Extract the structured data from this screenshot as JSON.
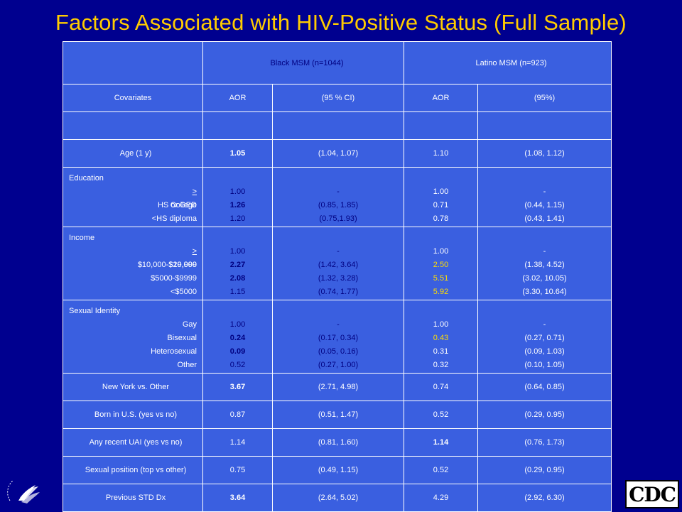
{
  "title": "Factors Associated with HIV-Positive Status (Full Sample)",
  "header": {
    "black_group": "Black MSM (n=1044)",
    "latino_group": "Latino MSM (n=923)",
    "col_covariates": "Covariates",
    "col_aor_black": "AOR",
    "col_ci_black": "(95 % CI)",
    "col_aor_latino": "AOR",
    "col_ci_latino": "(95%)"
  },
  "rows": {
    "age": {
      "label": "Age (1 y)",
      "aor_b": "1.05",
      "ci_b": "(1.04, 1.07)",
      "aor_l": "1.10",
      "ci_l": "(1.08, 1.12)"
    },
    "education": {
      "head": "Education",
      "items": [
        "> College",
        "HS or GED",
        "<HS diploma"
      ],
      "aor_b": [
        "1.00",
        "1.26",
        "1.20"
      ],
      "ci_b": [
        "-",
        "(0.85, 1.85)",
        "(0.75,1.93)"
      ],
      "aor_l": [
        "1.00",
        "0.71",
        "0.78"
      ],
      "ci_l": [
        "-",
        "(0.44, 1.15)",
        "(0.43, 1.41)"
      ]
    },
    "income": {
      "head": "Income",
      "items": [
        ">$20,000",
        "$10,000-$19,999",
        "$5000-$9999",
        "<$5000"
      ],
      "aor_b": [
        "1.00",
        "2.27",
        "2.08",
        "1.15"
      ],
      "ci_b": [
        "-",
        "(1.42, 3.64)",
        "(1.32, 3.28)",
        "(0.74, 1.77)"
      ],
      "aor_l": [
        "1.00",
        "2.50",
        "5.51",
        "5.92"
      ],
      "ci_l": [
        "-",
        "(1.38, 4.52)",
        "(3.02, 10.05)",
        "(3.30, 10.64)"
      ]
    },
    "sexual_identity": {
      "head": "Sexual Identity",
      "items": [
        "Gay",
        "Bisexual",
        "Heterosexual",
        "Other"
      ],
      "aor_b": [
        "1.00",
        "0.24",
        "0.09",
        "0.52"
      ],
      "ci_b": [
        "-",
        "(0.17, 0.34)",
        "(0.05, 0.16)",
        "(0.27, 1.00)"
      ],
      "aor_l": [
        "1.00",
        "0.43",
        "0.31",
        "0.32"
      ],
      "ci_l": [
        "-",
        "(0.27, 0.71)",
        "(0.09, 1.03)",
        "(0.10, 1.05)"
      ]
    },
    "new_york": {
      "label": "New York vs. Other",
      "aor_b": "3.67",
      "ci_b": "(2.71, 4.98)",
      "aor_l": "0.74",
      "ci_l": "(0.64, 0.85)"
    },
    "born_us": {
      "label": "Born in U.S. (yes vs no)",
      "aor_b": "0.87",
      "ci_b": "(0.51, 1.47)",
      "aor_l": "0.52",
      "ci_l": "(0.29, 0.95)"
    },
    "uai": {
      "label": "Any recent UAI (yes vs no)",
      "aor_b": "1.14",
      "ci_b": "(0.81, 1.60)",
      "aor_l": "1.14",
      "ci_l": "(0.76, 1.73)"
    },
    "position": {
      "label": "Sexual position (top vs other)",
      "aor_b": "0.75",
      "ci_b": "(0.49, 1.15)",
      "aor_l": "0.52",
      "ci_l": "(0.29, 0.95)"
    },
    "std": {
      "label": "Previous STD Dx",
      "aor_b": "3.64",
      "ci_b": "(2.64, 5.02)",
      "aor_l": "4.29",
      "ci_l": "(2.92, 6.30)"
    }
  },
  "logos": {
    "left_icon": "hhs-eagle-icon",
    "right_text": "CDC"
  },
  "colors": {
    "background": "#00008f",
    "title": "#ffcc00",
    "table_fill": "#3a5fe0",
    "highlight": "#ffdd00"
  }
}
